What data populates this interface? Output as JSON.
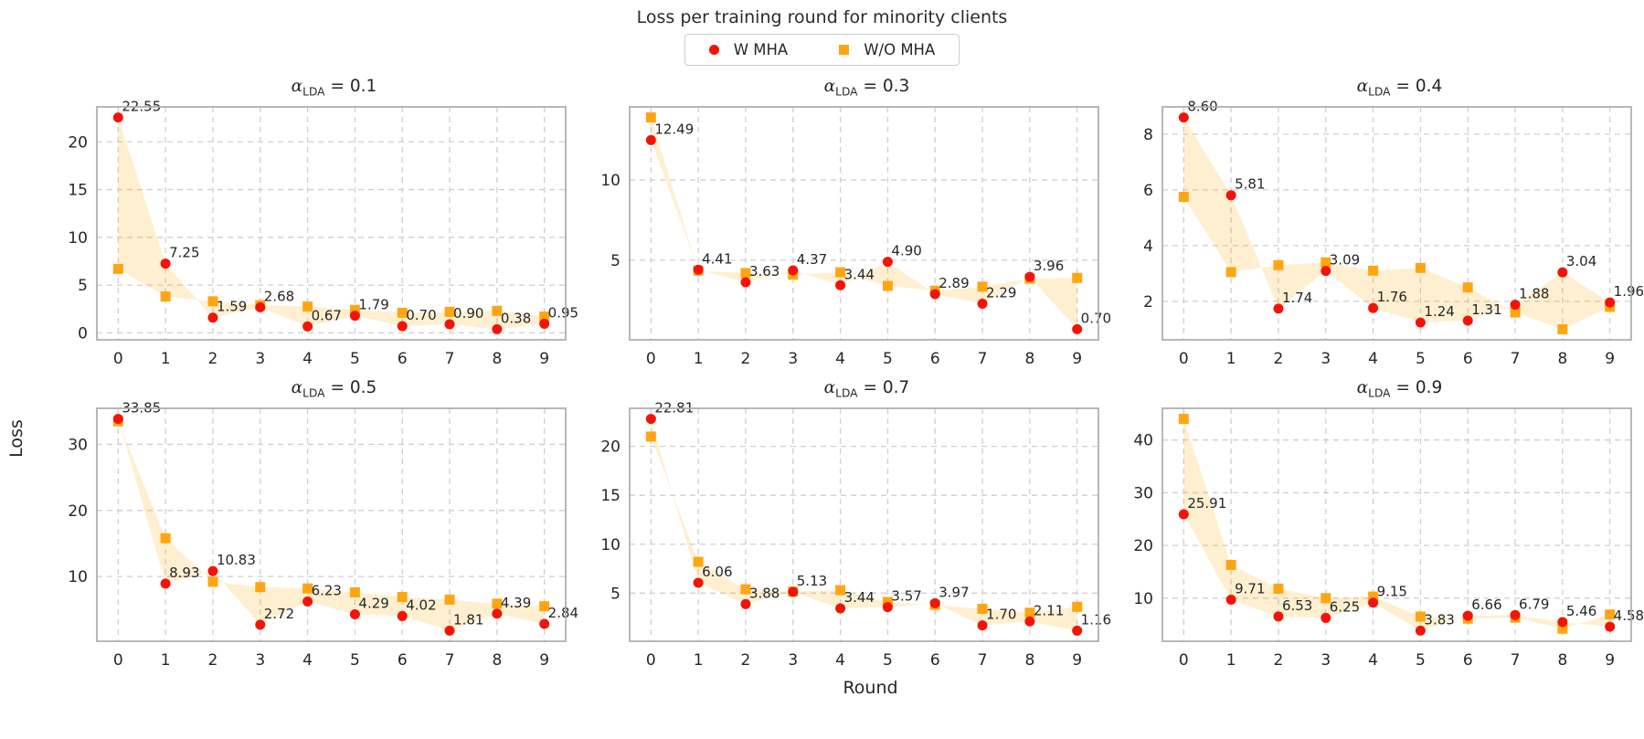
{
  "page": {
    "title": "Loss per training round for minority clients"
  },
  "legend": {
    "items": [
      {
        "label": "W MHA",
        "color": "#f41308",
        "marker": "circle"
      },
      {
        "label": "W/O MHA",
        "color": "#ffa511",
        "marker": "square"
      }
    ]
  },
  "axis": {
    "x_label": "Round",
    "y_label": "Loss"
  },
  "style": {
    "grid_color": "#cfcfcf",
    "spine_color": "#ababab",
    "fill_color": "#ffa500",
    "fill_opacity": 0.18,
    "label_color": "#1a1a1a"
  },
  "chart_data": [
    {
      "type": "scatter",
      "title": "α_LDA = 0.1",
      "title_alpha": "α",
      "title_sub": "LDA",
      "title_value": "= 0.1",
      "x_values": [
        0,
        1,
        2,
        3,
        4,
        5,
        6,
        7,
        8,
        9
      ],
      "yticks": [
        0,
        5,
        10,
        15,
        20
      ],
      "ylim": [
        -0.73,
        23.66
      ],
      "grid": true,
      "series": [
        {
          "name": "W MHA",
          "marker": "circle",
          "color": "#f41308",
          "values": [
            22.55,
            7.25,
            1.59,
            2.68,
            0.67,
            1.79,
            0.7,
            0.9,
            0.38,
            0.95
          ],
          "labels": [
            "22.55",
            "7.25",
            "1.59",
            "2.68",
            "0.67",
            "1.79",
            "0.70",
            "0.90",
            "0.38",
            "0.95"
          ]
        },
        {
          "name": "W/O MHA",
          "marker": "square",
          "color": "#ffa511",
          "values": [
            6.7,
            3.8,
            3.3,
            2.9,
            2.75,
            2.4,
            2.1,
            2.2,
            2.3,
            1.7
          ]
        }
      ]
    },
    {
      "type": "scatter",
      "title": "α_LDA = 0.3",
      "title_alpha": "α",
      "title_sub": "LDA",
      "title_value": "= 0.3",
      "x_values": [
        0,
        1,
        2,
        3,
        4,
        5,
        6,
        7,
        8,
        9
      ],
      "yticks": [
        5,
        10
      ],
      "ylim": [
        0.04,
        14.56
      ],
      "grid": true,
      "series": [
        {
          "name": "W MHA",
          "marker": "circle",
          "color": "#f41308",
          "values": [
            12.49,
            4.41,
            3.63,
            4.37,
            3.44,
            4.9,
            2.89,
            2.29,
            3.96,
            0.7
          ],
          "labels": [
            "12.49",
            "4.41",
            "3.63",
            "4.37",
            "3.44",
            "4.90",
            "2.89",
            "2.29",
            "3.96",
            "0.70"
          ]
        },
        {
          "name": "W/O MHA",
          "marker": "square",
          "color": "#ffa511",
          "values": [
            13.9,
            4.35,
            4.2,
            4.1,
            4.25,
            3.4,
            3.1,
            3.35,
            3.85,
            3.9
          ]
        }
      ]
    },
    {
      "type": "scatter",
      "title": "α_LDA = 0.4",
      "title_alpha": "α",
      "title_sub": "LDA",
      "title_value": "= 0.4",
      "x_values": [
        0,
        1,
        2,
        3,
        4,
        5,
        6,
        7,
        8,
        9
      ],
      "yticks": [
        2,
        4,
        6,
        8
      ],
      "ylim": [
        0.62,
        8.98
      ],
      "grid": true,
      "series": [
        {
          "name": "W MHA",
          "marker": "circle",
          "color": "#f41308",
          "values": [
            8.6,
            5.81,
            1.74,
            3.09,
            1.76,
            1.24,
            1.31,
            1.88,
            3.04,
            1.96
          ],
          "labels": [
            "8.60",
            "5.81",
            "1.74",
            "3.09",
            "1.76",
            "1.24",
            "1.31",
            "1.88",
            "3.04",
            "1.96"
          ]
        },
        {
          "name": "W/O MHA",
          "marker": "square",
          "color": "#ffa511",
          "values": [
            5.75,
            3.05,
            3.3,
            3.4,
            3.1,
            3.2,
            2.5,
            1.6,
            1.0,
            1.8
          ]
        }
      ]
    },
    {
      "type": "scatter",
      "title": "α_LDA = 0.5",
      "title_alpha": "α",
      "title_sub": "LDA",
      "title_value": "= 0.5",
      "x_values": [
        0,
        1,
        2,
        3,
        4,
        5,
        6,
        7,
        8,
        9
      ],
      "yticks": [
        10,
        20,
        30
      ],
      "ylim": [
        0.21,
        35.45
      ],
      "grid": true,
      "series": [
        {
          "name": "W MHA",
          "marker": "circle",
          "color": "#f41308",
          "values": [
            33.85,
            8.93,
            10.83,
            2.72,
            6.23,
            4.29,
            4.02,
            1.81,
            4.39,
            2.84
          ],
          "labels": [
            "33.85",
            "8.93",
            "10.83",
            "2.72",
            "6.23",
            "4.29",
            "4.02",
            "1.81",
            "4.39",
            "2.84"
          ]
        },
        {
          "name": "W/O MHA",
          "marker": "square",
          "color": "#ffa511",
          "values": [
            33.5,
            15.8,
            9.2,
            8.4,
            8.2,
            7.6,
            6.9,
            6.5,
            5.9,
            5.5
          ]
        }
      ]
    },
    {
      "type": "scatter",
      "title": "α_LDA = 0.7",
      "title_alpha": "α",
      "title_sub": "LDA",
      "title_value": "= 0.7",
      "x_values": [
        0,
        1,
        2,
        3,
        4,
        5,
        6,
        7,
        8,
        9
      ],
      "yticks": [
        5,
        10,
        15,
        20
      ],
      "ylim": [
        0.08,
        23.89
      ],
      "grid": true,
      "series": [
        {
          "name": "W MHA",
          "marker": "circle",
          "color": "#f41308",
          "values": [
            22.81,
            6.06,
            3.88,
            5.13,
            3.44,
            3.57,
            3.97,
            1.7,
            2.11,
            1.16
          ],
          "labels": [
            "22.81",
            "6.06",
            "3.88",
            "5.13",
            "3.44",
            "3.57",
            "3.97",
            "1.70",
            "2.11",
            "1.16"
          ]
        },
        {
          "name": "W/O MHA",
          "marker": "square",
          "color": "#ffa511",
          "values": [
            21.0,
            8.2,
            5.4,
            5.15,
            5.3,
            4.1,
            3.8,
            3.4,
            3.0,
            3.6
          ]
        }
      ]
    },
    {
      "type": "scatter",
      "title": "α_LDA = 0.9",
      "title_alpha": "α",
      "title_sub": "LDA",
      "title_value": "= 0.9",
      "x_values": [
        0,
        1,
        2,
        3,
        4,
        5,
        6,
        7,
        8,
        9
      ],
      "yticks": [
        10,
        20,
        30,
        40
      ],
      "ylim": [
        1.82,
        46.01
      ],
      "grid": true,
      "series": [
        {
          "name": "W MHA",
          "marker": "circle",
          "color": "#f41308",
          "values": [
            25.91,
            9.71,
            6.53,
            6.25,
            9.15,
            3.83,
            6.66,
            6.79,
            5.46,
            4.58
          ],
          "labels": [
            "25.91",
            "9.71",
            "6.53",
            "6.25",
            "9.15",
            "3.83",
            "6.66",
            "6.79",
            "5.46",
            "4.58"
          ]
        },
        {
          "name": "W/O MHA",
          "marker": "square",
          "color": "#ffa511",
          "values": [
            44.0,
            16.3,
            11.8,
            10.0,
            10.3,
            6.5,
            6.1,
            6.3,
            4.2,
            6.9
          ]
        }
      ]
    }
  ]
}
